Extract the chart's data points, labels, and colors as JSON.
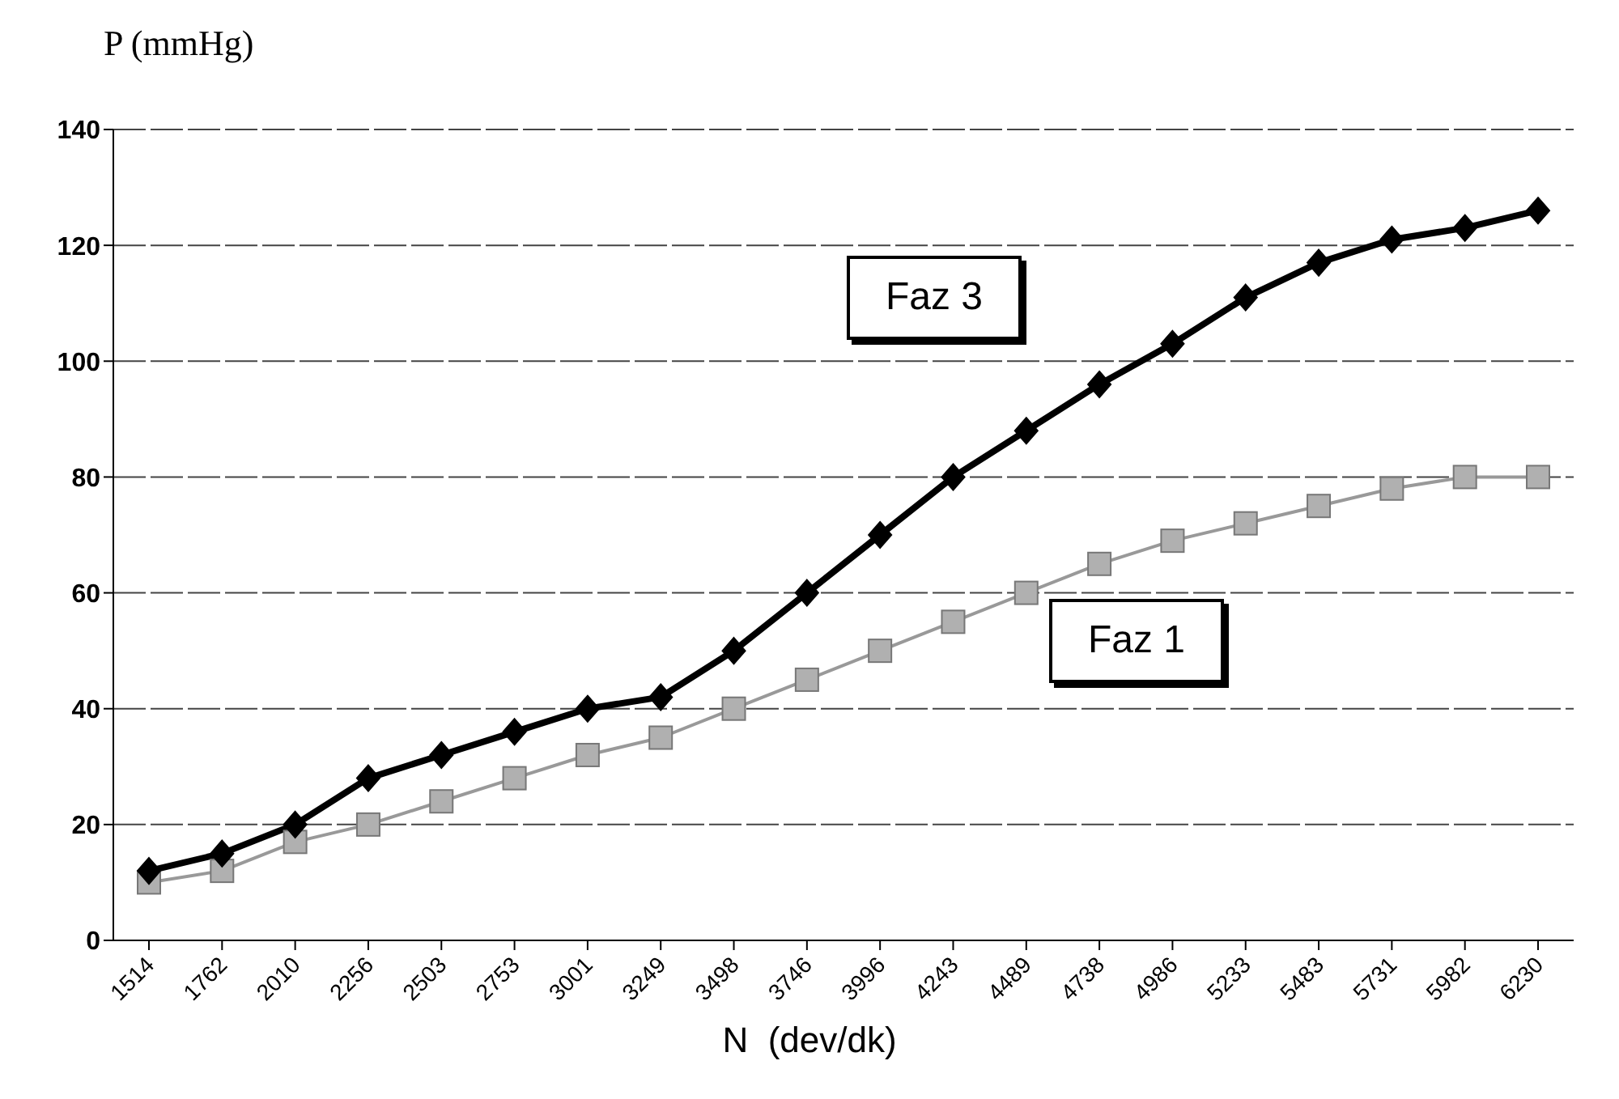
{
  "chart_data": {
    "type": "line",
    "xlabel": "N  (dev/dk)",
    "ylabel": "P (mmHg)",
    "categories": [
      "1514",
      "1762",
      "2010",
      "2256",
      "2503",
      "2753",
      "3001",
      "3249",
      "3498",
      "3746",
      "3996",
      "4243",
      "4489",
      "4738",
      "4986",
      "5233",
      "5483",
      "5731",
      "5982",
      "6230"
    ],
    "series": [
      {
        "name": "Faz 3",
        "color": "#000000",
        "marker": "diamond",
        "values": [
          12,
          15,
          20,
          28,
          32,
          36,
          40,
          42,
          50,
          60,
          70,
          80,
          88,
          96,
          103,
          111,
          117,
          121,
          123,
          126
        ]
      },
      {
        "name": "Faz 1",
        "color": "#999999",
        "marker": "square",
        "values": [
          10,
          12,
          17,
          20,
          24,
          28,
          32,
          35,
          40,
          45,
          50,
          55,
          60,
          65,
          69,
          72,
          75,
          78,
          80,
          80
        ]
      }
    ],
    "ylim": [
      0,
      140
    ],
    "yticks": [
      0,
      20,
      40,
      60,
      80,
      100,
      120,
      140
    ],
    "grid": "y",
    "legend": false
  }
}
